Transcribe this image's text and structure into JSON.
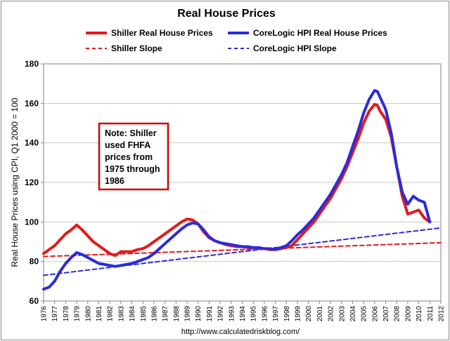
{
  "chart_data": {
    "type": "line",
    "title": "Real House Prices",
    "ylabel": "Real House Prices using CPI, Q1 2000 = 100",
    "xlabel": "",
    "ylim": [
      60,
      180
    ],
    "yticks": [
      60,
      80,
      100,
      120,
      140,
      160,
      180
    ],
    "xlim": [
      1976,
      2012
    ],
    "xticks": [
      "1976",
      "1977",
      "1978",
      "1979",
      "1980",
      "1981",
      "1982",
      "1983",
      "1984",
      "1985",
      "1986",
      "1987",
      "1988",
      "1989",
      "1990",
      "1991",
      "1992",
      "1993",
      "1994",
      "1995",
      "1996",
      "1997",
      "1998",
      "1999",
      "2000",
      "2001",
      "2002",
      "2003",
      "2004",
      "2005",
      "2006",
      "2007",
      "2008",
      "2009",
      "2010",
      "2011",
      "2012"
    ],
    "grid": true,
    "legend_position": "top",
    "annotation": {
      "lines": [
        "Note: Shiller",
        "used FHFA",
        "prices from",
        "1975 through",
        "1986"
      ],
      "border_color": "#d40000"
    },
    "source": "http://www.calculatedriskblog.com/",
    "series": [
      {
        "name": "Shiller Real House Prices",
        "color": "#e31a1c",
        "style": "solid",
        "x": [
          1976.0,
          1976.5,
          1977.0,
          1977.5,
          1978.0,
          1978.5,
          1979.0,
          1979.5,
          1980.0,
          1980.5,
          1981.0,
          1981.5,
          1982.0,
          1982.5,
          1983.0,
          1983.5,
          1984.0,
          1984.5,
          1985.0,
          1985.5,
          1986.0,
          1986.5,
          1987.0,
          1987.5,
          1988.0,
          1988.5,
          1989.0,
          1989.5,
          1990.0,
          1990.5,
          1991.0,
          1991.5,
          1992.0,
          1992.5,
          1993.0,
          1993.5,
          1994.0,
          1994.5,
          1995.0,
          1995.5,
          1996.0,
          1996.5,
          1997.0,
          1997.5,
          1998.0,
          1998.5,
          1999.0,
          1999.5,
          2000.0,
          2000.5,
          2001.0,
          2001.5,
          2002.0,
          2002.5,
          2003.0,
          2003.5,
          2004.0,
          2004.5,
          2005.0,
          2005.5,
          2006.0,
          2006.25,
          2006.5,
          2007.0,
          2007.5,
          2008.0,
          2008.5,
          2009.0,
          2009.5,
          2010.0,
          2010.5,
          2011.0
        ],
        "values": [
          84,
          86,
          88,
          91,
          94,
          96,
          98.5,
          96,
          93,
          90,
          88,
          86,
          84,
          83,
          85,
          85,
          85,
          86,
          86.5,
          88,
          90,
          92,
          94,
          96,
          98,
          100,
          101.5,
          101,
          99,
          95,
          92,
          90.5,
          89.5,
          88.5,
          88,
          87.5,
          87.5,
          87,
          87,
          86.5,
          86.5,
          86,
          86,
          86.5,
          87,
          88,
          91,
          94,
          97,
          100,
          104,
          108,
          112,
          117,
          122,
          128,
          135,
          142,
          150,
          156,
          159.5,
          159,
          156,
          152,
          143,
          128,
          113,
          104,
          105,
          106,
          102,
          100
        ]
      },
      {
        "name": "CoreLogic HPI Real House Prices",
        "color": "#2b2bd9",
        "style": "solid",
        "x": [
          1976.0,
          1976.5,
          1977.0,
          1977.5,
          1978.0,
          1978.5,
          1979.0,
          1979.5,
          1980.0,
          1980.5,
          1981.0,
          1981.5,
          1982.0,
          1982.5,
          1983.0,
          1983.5,
          1984.0,
          1984.5,
          1985.0,
          1985.5,
          1986.0,
          1986.5,
          1987.0,
          1987.5,
          1988.0,
          1988.5,
          1989.0,
          1989.5,
          1990.0,
          1990.5,
          1991.0,
          1991.5,
          1992.0,
          1992.5,
          1993.0,
          1993.5,
          1994.0,
          1994.5,
          1995.0,
          1995.5,
          1996.0,
          1996.5,
          1997.0,
          1997.5,
          1998.0,
          1998.5,
          1999.0,
          1999.5,
          2000.0,
          2000.5,
          2001.0,
          2001.5,
          2002.0,
          2002.5,
          2003.0,
          2003.5,
          2004.0,
          2004.5,
          2005.0,
          2005.5,
          2006.0,
          2006.25,
          2006.5,
          2007.0,
          2007.5,
          2008.0,
          2008.5,
          2009.0,
          2009.5,
          2010.0,
          2010.5,
          2011.0
        ],
        "values": [
          66,
          67,
          70,
          75,
          79,
          82,
          84.5,
          83.5,
          82,
          80.5,
          79,
          78.5,
          78,
          77.5,
          78,
          78.5,
          79,
          80,
          81,
          82,
          84,
          86.5,
          89,
          91.5,
          94,
          96.5,
          98.5,
          99.5,
          99,
          96,
          92.5,
          90.5,
          89.5,
          89,
          88.5,
          88,
          87.5,
          87.5,
          87,
          87,
          86.5,
          86.5,
          86,
          87,
          88,
          90.5,
          93.5,
          96,
          99,
          102,
          106,
          110,
          114,
          119,
          124,
          130,
          138,
          146,
          155,
          162,
          166.5,
          166,
          163,
          157,
          145,
          128,
          115,
          109,
          113,
          111,
          110,
          100
        ]
      },
      {
        "name": "Shiller Slope",
        "color": "#e31a1c",
        "style": "dashed",
        "x": [
          1976,
          2012
        ],
        "values": [
          82.5,
          89.5
        ]
      },
      {
        "name": "CoreLogic HPI Slope",
        "color": "#2b2bd9",
        "style": "dashed",
        "x": [
          1976,
          2012
        ],
        "values": [
          73,
          97
        ]
      }
    ]
  }
}
